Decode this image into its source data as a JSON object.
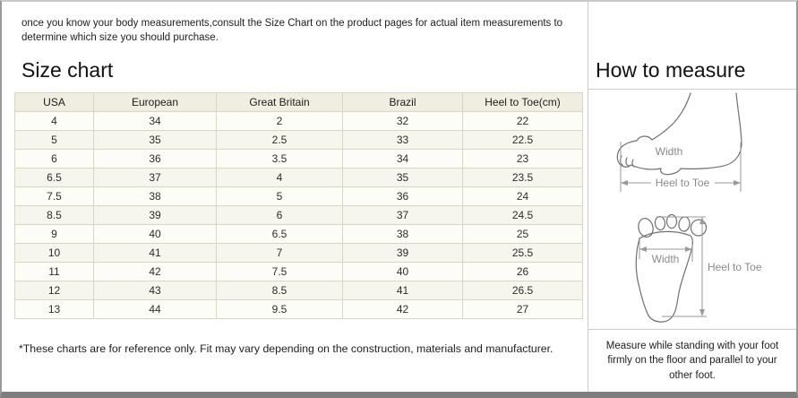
{
  "intro": {
    "text": "once you know your body measurements,consult the Size Chart on the product pages for actual item measurements to determine which size you should purchase."
  },
  "size_chart": {
    "title": "Size chart",
    "columns": [
      "USA",
      "European",
      "Great Britain",
      "Brazil",
      "Heel to Toe(cm)"
    ],
    "rows": [
      [
        "4",
        "34",
        "2",
        "32",
        "22"
      ],
      [
        "5",
        "35",
        "2.5",
        "33",
        "22.5"
      ],
      [
        "6",
        "36",
        "3.5",
        "34",
        "23"
      ],
      [
        "6.5",
        "37",
        "4",
        "35",
        "23.5"
      ],
      [
        "7.5",
        "38",
        "5",
        "36",
        "24"
      ],
      [
        "8.5",
        "39",
        "6",
        "37",
        "24.5"
      ],
      [
        "9",
        "40",
        "6.5",
        "38",
        "25"
      ],
      [
        "10",
        "41",
        "7",
        "39",
        "25.5"
      ],
      [
        "11",
        "42",
        "7.5",
        "40",
        "26"
      ],
      [
        "12",
        "43",
        "8.5",
        "41",
        "26.5"
      ],
      [
        "13",
        "44",
        "9.5",
        "42",
        "27"
      ]
    ],
    "footnote": "*These charts are for reference only. Fit may vary depending on the construction, materials and manufacturer."
  },
  "how_to_measure": {
    "title": "How to measure",
    "side_view": {
      "width_label": "Width",
      "length_label": "Heel to Toe"
    },
    "top_view": {
      "width_label": "Width",
      "length_label": "Heel to Toe"
    },
    "instructions": "Measure while standing with your foot firmly on the floor and parallel to your other foot."
  },
  "colors": {
    "table_border": "#d8d5c2",
    "table_header_bg": "#f0eee1",
    "row_bg": "#fdfdf8",
    "row_alt_bg": "#f6f5ee",
    "frame_border": "#9a9a9a",
    "bottom_bar": "#7e7e7e",
    "panel_divider": "#cccccc",
    "diagram_line": "#6f6f6f",
    "measure_line": "#9a9a9a",
    "label_text": "#8a8a8a"
  }
}
